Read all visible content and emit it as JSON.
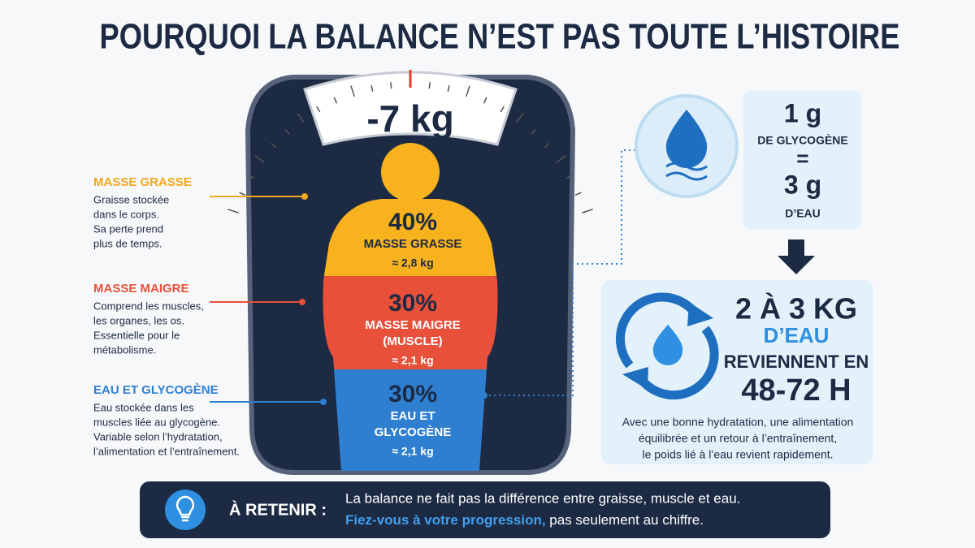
{
  "title": "POURQUOI LA BALANCE N’EST PAS TOUTE L’HISTOIRE",
  "scale_reading": "-7 kg",
  "legend": [
    {
      "title": "MASSE GRASSE",
      "lines": [
        "Graisse stockée",
        "dans le corps.",
        "Sa perte prend",
        "plus de temps."
      ]
    },
    {
      "title": "MASSE MAIGRE",
      "lines": [
        "Comprend les muscles,",
        "les organes, les os.",
        "Essentielle pour le",
        "métabolisme."
      ]
    },
    {
      "title": "EAU ET GLYCOGÈNE",
      "lines": [
        "Eau stockée dans les",
        "muscles liée au glycogène.",
        "Variable selon l’hydratation,",
        "l’alimentation et l’entraînement."
      ]
    }
  ],
  "body": [
    {
      "percent": "40%",
      "label": [
        "MASSE GRASSE"
      ],
      "amount": "≈ 2,8 kg"
    },
    {
      "percent": "30%",
      "label": [
        "MASSE MAIGRE",
        "(MUSCLE)"
      ],
      "amount": "≈ 2,1 kg"
    },
    {
      "percent": "30%",
      "label": [
        "EAU ET",
        "GLYCOGÈNE"
      ],
      "amount": "≈ 2,1 kg"
    }
  ],
  "equivalence": {
    "glycogen_amount": "1 g",
    "glycogen_label": "DE GLYCOGÈNE",
    "equals": "=",
    "water_amount": "3 g",
    "water_label": "D’EAU"
  },
  "recovery": {
    "amount": "2 À 3 KG",
    "label": "D’EAU",
    "verb": "REVIENNENT EN",
    "duration": "48-72 H",
    "note": [
      "Avec une bonne hydratation, une alimentation",
      "équilibrée et un retour à l’entraînement,",
      "le poids lié à l’eau revient rapidement."
    ]
  },
  "footer": {
    "label": "À RETENIR :",
    "line1": "La balance ne fait pas la différence entre graisse, muscle et eau.",
    "highlight": "Fiez-vous à votre progression,",
    "rest": " pas seulement au chiffre."
  }
}
